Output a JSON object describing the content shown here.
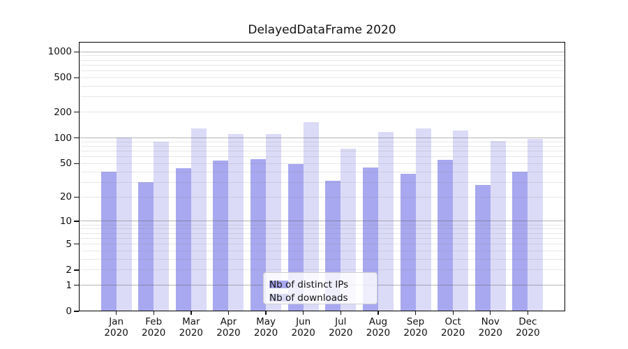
{
  "title": "DelayedDataFrame 2020",
  "chart_data": {
    "type": "bar",
    "title": "DelayedDataFrame 2020",
    "xlabel": "",
    "ylabel": "",
    "y_scale": "log10(1+value)",
    "ylim": [
      0,
      1300
    ],
    "y_ticks": [
      0,
      1,
      2,
      5,
      10,
      20,
      50,
      100,
      200,
      500,
      1000
    ],
    "grid": "horizontal; major lines at 1,10,100,1000; faint minor lines at 2-9 multiples",
    "legend_position": "inside plot, lower center",
    "categories": [
      "Jan 2020",
      "Feb 2020",
      "Mar 2020",
      "Apr 2020",
      "May 2020",
      "Jun 2020",
      "Jul 2020",
      "Aug 2020",
      "Sep 2020",
      "Oct 2020",
      "Nov 2020",
      "Dec 2020"
    ],
    "series": [
      {
        "name": "Nb of distinct IPs",
        "color": "#a8a8f0",
        "values": [
          40,
          30,
          44,
          54,
          56,
          49,
          31,
          45,
          38,
          55,
          28,
          40
        ]
      },
      {
        "name": "Nb of downloads",
        "color": "#dbdbf7",
        "values": [
          101,
          90,
          129,
          111,
          110,
          153,
          75,
          118,
          128,
          122,
          92,
          97
        ]
      }
    ]
  },
  "colors": {
    "background": "#ffffff",
    "frame": "#000000",
    "text": "#111111",
    "major_grid": "#c0c0c0",
    "minor_grid": "#e8e8e8",
    "legend_border": "#cfcfcf"
  }
}
